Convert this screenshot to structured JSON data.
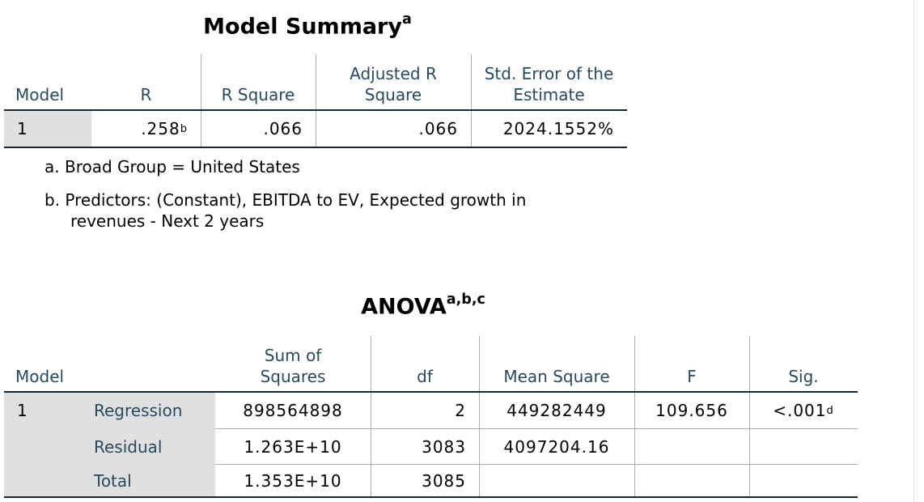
{
  "model_summary": {
    "title": "Model Summary",
    "title_note": "a",
    "headers": [
      "Model",
      "R",
      "R Square",
      "Adjusted R Square",
      "Std. Error of the Estimate"
    ],
    "rows": [
      [
        "1",
        ".258",
        ".066",
        ".066",
        "2024.1552%"
      ]
    ],
    "r_note": "b",
    "footnotes": [
      "a. Broad Group = United States",
      "b. Predictors: (Constant), EBITDA to EV, Expected growth in revenues - Next 2 years"
    ]
  },
  "anova": {
    "title": "ANOVA",
    "title_note": "a,b,c",
    "headers": [
      "Model",
      "Sum of Squares",
      "df",
      "Mean Square",
      "F",
      "Sig."
    ],
    "rows": [
      [
        "1",
        "Regression",
        "898564898",
        "2",
        "449282449",
        "109.656",
        "<.001"
      ],
      [
        "",
        "Residual",
        "1.263E+10",
        "3083",
        "4097204.16",
        "",
        ""
      ],
      [
        "",
        "Total",
        "1.353E+10",
        "3085",
        "",
        "",
        ""
      ]
    ],
    "sig_note": "d"
  }
}
